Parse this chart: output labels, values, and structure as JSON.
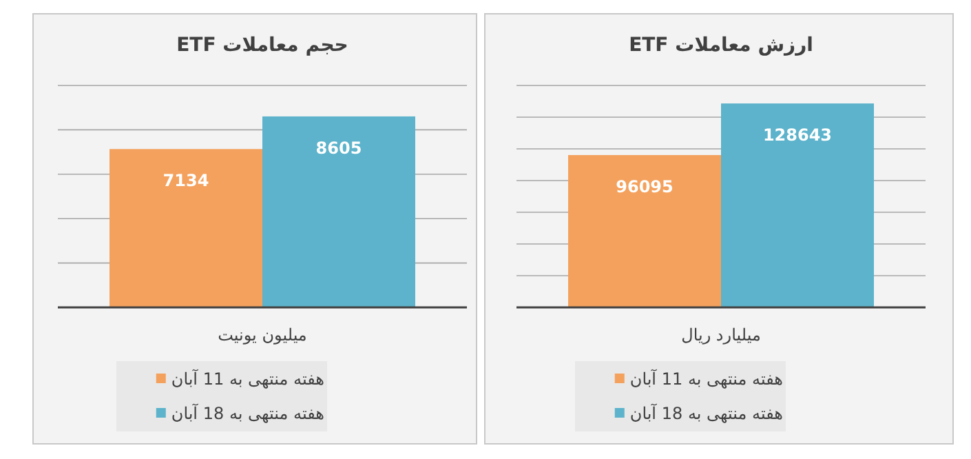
{
  "chart_data": [
    {
      "type": "bar",
      "title": "حجم معاملات ETF",
      "categories": [
        null
      ],
      "xlabel": "میلیون یونیت",
      "series": [
        {
          "name": "هفته منتهی به 11 آبان",
          "color": "#f4a15d",
          "values": [
            7134
          ]
        },
        {
          "name": "هفته منتهی به 18 آبان",
          "color": "#5cb3cb",
          "values": [
            8605
          ]
        }
      ],
      "ylim": [
        0,
        10000
      ],
      "yticks": [
        {
          "value": 0,
          "label": null
        },
        {
          "value": 2000,
          "label": null
        },
        {
          "value": 4000,
          "label": null
        },
        {
          "value": 6000,
          "label": null
        },
        {
          "value": 8000,
          "label": null
        },
        {
          "value": 10000,
          "label": null
        }
      ],
      "grid": "y",
      "data_labels": true,
      "legend": "bottom"
    },
    {
      "type": "bar",
      "title": "ارزش معاملات ETF",
      "categories": [
        null
      ],
      "xlabel": "میلیارد ریال",
      "series": [
        {
          "name": "هفته منتهی به 11 آبان",
          "color": "#f4a15d",
          "values": [
            96095
          ]
        },
        {
          "name": "هفته منتهی به 18 آبان",
          "color": "#5cb3cb",
          "values": [
            128643
          ]
        }
      ],
      "ylim": [
        0,
        140000
      ],
      "yticks": [
        {
          "value": 0,
          "label": null
        },
        {
          "value": 20000,
          "label": null
        },
        {
          "value": 40000,
          "label": null
        },
        {
          "value": 60000,
          "label": null
        },
        {
          "value": 80000,
          "label": null
        },
        {
          "value": 100000,
          "label": null
        },
        {
          "value": 120000,
          "label": null
        },
        {
          "value": 140000,
          "label": null
        }
      ],
      "grid": "y",
      "data_labels": true,
      "legend": "bottom"
    }
  ]
}
